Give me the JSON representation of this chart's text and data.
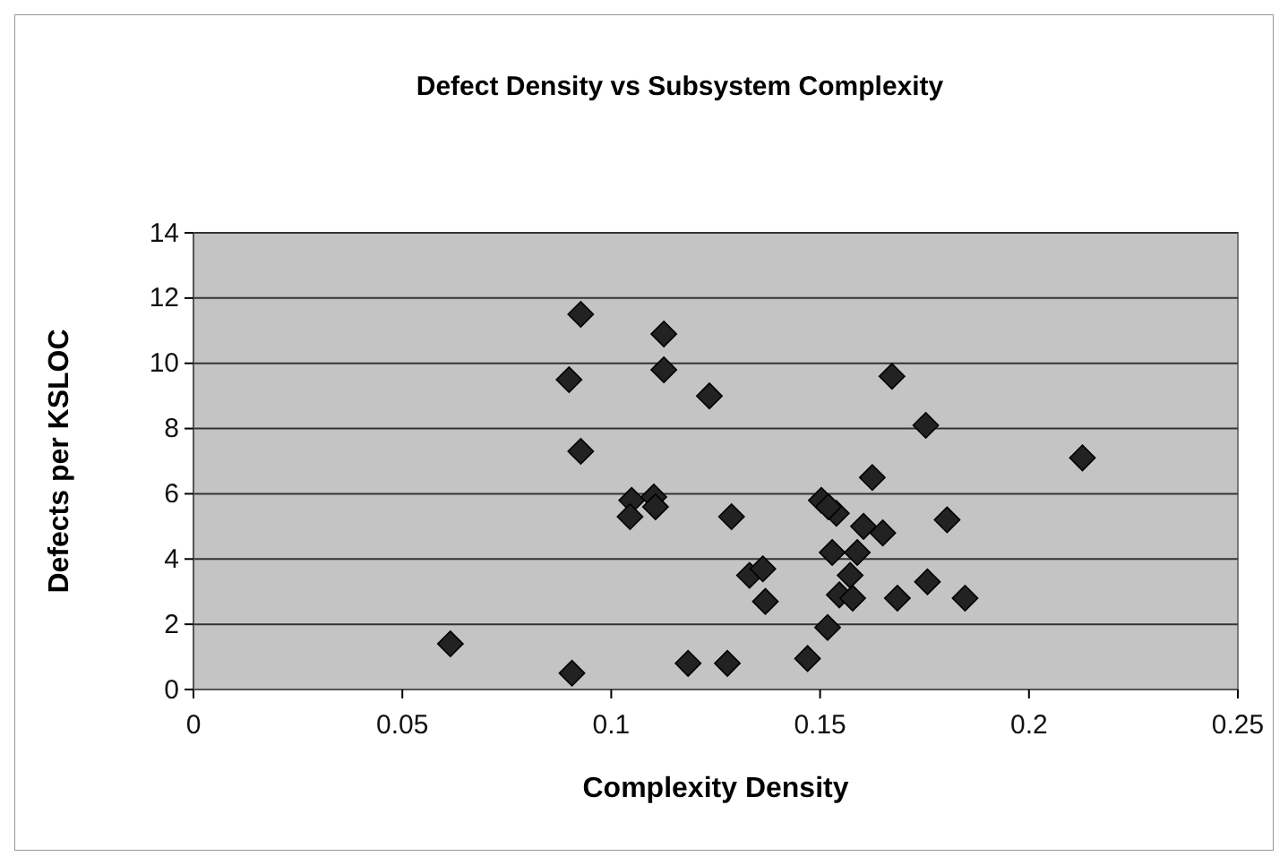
{
  "chart_data": {
    "type": "scatter",
    "title": "Defect Density vs Subsystem Complexity",
    "xlabel": "Complexity Density",
    "ylabel": "Defects per KSLOC",
    "xlim": [
      0,
      0.25
    ],
    "xticks": [
      0,
      0.05,
      0.1,
      0.15,
      0.2,
      0.25
    ],
    "ylim": [
      0,
      14
    ],
    "yticks": [
      0,
      2,
      4,
      6,
      8,
      10,
      12,
      14
    ],
    "grid": "y",
    "marker": "diamond",
    "series": [
      {
        "color": "#222222",
        "x": [
          0.0615,
          0.0927,
          0.0899,
          0.0927,
          0.0906,
          0.1126,
          0.1126,
          0.1235,
          0.1049,
          0.1045,
          0.1102,
          0.1106,
          0.1288,
          0.1331,
          0.1363,
          0.1369,
          0.1184,
          0.1278,
          0.147,
          0.1672,
          0.1753,
          0.2128,
          0.1625,
          0.1503,
          0.1539,
          0.152,
          0.1804,
          0.1604,
          0.165,
          0.1529,
          0.1589,
          0.1572,
          0.1546,
          0.1578,
          0.1685,
          0.1757,
          0.1847,
          0.1518
        ],
        "values": [
          1.4,
          11.5,
          9.5,
          7.3,
          0.5,
          10.9,
          9.8,
          9.0,
          5.8,
          5.3,
          5.9,
          5.6,
          5.3,
          3.5,
          3.7,
          2.7,
          0.8,
          0.8,
          0.95,
          9.6,
          8.1,
          7.1,
          6.5,
          5.8,
          5.4,
          5.6,
          5.2,
          5.0,
          4.8,
          4.2,
          4.2,
          3.5,
          2.9,
          2.8,
          2.8,
          3.3,
          2.8,
          1.9
        ]
      }
    ]
  }
}
